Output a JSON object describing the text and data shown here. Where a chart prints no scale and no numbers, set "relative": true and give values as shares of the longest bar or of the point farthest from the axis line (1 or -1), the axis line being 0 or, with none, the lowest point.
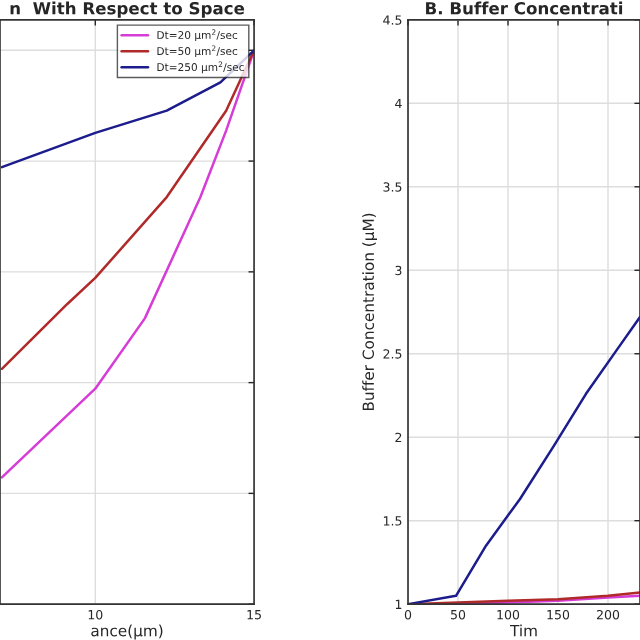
{
  "chart_data": [
    {
      "type": "line",
      "title": "n  With Respect to Space",
      "xlabel": "ance(μm)",
      "relative": true,
      "xlim": [
        7,
        15
      ],
      "xticks": [
        10,
        15
      ],
      "tick_labels": "x",
      "grid": true,
      "legend": "top right",
      "series": [
        {
          "name": "Dt=20 μm$^{2}$/sec",
          "color": "#d63cd6",
          "x": [
            7.06,
            10,
            11.56,
            13.31,
            14.12,
            15
          ],
          "values": [
            0.229,
            0.389,
            0.516,
            0.735,
            0.855,
            1
          ]
        },
        {
          "name": "Dt=50 μm$^{2}$/sec",
          "color": "#b02a2a",
          "x": [
            7.06,
            9.12,
            10,
            12.25,
            14.12,
            15
          ],
          "values": [
            0.425,
            0.542,
            0.589,
            0.735,
            0.891,
            1
          ]
        },
        {
          "name": "Dt=250 μm$^{2}$/sec",
          "color": "#1c1c8c",
          "x": [
            7.06,
            10,
            12.25,
            13.94,
            15
          ],
          "values": [
            0.789,
            0.851,
            0.891,
            0.942,
            1
          ]
        }
      ]
    },
    {
      "type": "line",
      "title": "B. Buffer Concentrati",
      "xlabel": "Tim",
      "ylabel": "Buffer Concentration (μM)",
      "xlim": [
        0,
        232
      ],
      "xticks": [
        0,
        50,
        100,
        150,
        200
      ],
      "ylim": [
        1,
        4.5
      ],
      "yticks": [
        1,
        1.5,
        2,
        2.5,
        3,
        3.5,
        4,
        4.5
      ],
      "grid": true,
      "series": [
        {
          "color": "#d63cd6",
          "x": [
            0,
            50,
            100,
            150,
            200,
            232
          ],
          "values": [
            1,
            1.0,
            1.01,
            1.02,
            1.04,
            1.05
          ]
        },
        {
          "color": "#b02a2a",
          "x": [
            0,
            50,
            100,
            150,
            200,
            232
          ],
          "values": [
            1,
            1.01,
            1.02,
            1.03,
            1.05,
            1.07
          ]
        },
        {
          "color": "#1c1c8c",
          "x": [
            0,
            48,
            78,
            112,
            146,
            178,
            212,
            232
          ],
          "values": [
            1,
            1.05,
            1.35,
            1.63,
            1.95,
            2.26,
            2.55,
            2.72
          ]
        }
      ]
    }
  ]
}
